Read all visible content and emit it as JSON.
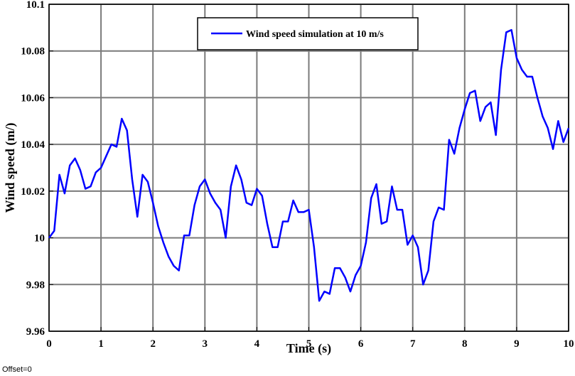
{
  "chart_data": {
    "type": "line",
    "title": "",
    "xlabel": "Time (s)",
    "ylabel": "Wind speed (m/)",
    "xlim": [
      0,
      10
    ],
    "ylim": [
      9.96,
      10.1
    ],
    "xticks": [
      "0",
      "1",
      "2",
      "3",
      "4",
      "5",
      "6",
      "7",
      "8",
      "9",
      "10"
    ],
    "yticks": [
      "9.96",
      "9.98",
      "10",
      "10.02",
      "10.04",
      "10.06",
      "10.08",
      "10.1"
    ],
    "grid": true,
    "legend_position": "top-center",
    "offset_label": "Offset=0",
    "line_color": "#0000ff",
    "series": [
      {
        "name": "Wind speed simulation at 10 m/s",
        "x": [
          0,
          0.1,
          0.2,
          0.3,
          0.4,
          0.5,
          0.6,
          0.7,
          0.8,
          0.9,
          1.0,
          1.1,
          1.2,
          1.3,
          1.4,
          1.5,
          1.6,
          1.7,
          1.8,
          1.9,
          2.0,
          2.1,
          2.2,
          2.3,
          2.4,
          2.5,
          2.6,
          2.7,
          2.8,
          2.9,
          3.0,
          3.1,
          3.2,
          3.3,
          3.4,
          3.5,
          3.6,
          3.7,
          3.8,
          3.9,
          4.0,
          4.1,
          4.2,
          4.3,
          4.4,
          4.5,
          4.6,
          4.7,
          4.8,
          4.9,
          5.0,
          5.1,
          5.2,
          5.3,
          5.4,
          5.5,
          5.6,
          5.7,
          5.8,
          5.9,
          6.0,
          6.1,
          6.2,
          6.3,
          6.4,
          6.5,
          6.6,
          6.7,
          6.8,
          6.9,
          7.0,
          7.1,
          7.2,
          7.3,
          7.4,
          7.5,
          7.6,
          7.7,
          7.8,
          7.9,
          8.0,
          8.1,
          8.2,
          8.3,
          8.4,
          8.5,
          8.6,
          8.7,
          8.8,
          8.9,
          9.0,
          9.1,
          9.2,
          9.3,
          9.4,
          9.5,
          9.6,
          9.7,
          9.8,
          9.9,
          10.0
        ],
        "y": [
          10.0,
          10.003,
          10.027,
          10.019,
          10.031,
          10.034,
          10.029,
          10.021,
          10.022,
          10.028,
          10.03,
          10.035,
          10.04,
          10.039,
          10.051,
          10.046,
          10.025,
          10.009,
          10.027,
          10.024,
          10.015,
          10.005,
          9.998,
          9.992,
          9.988,
          9.986,
          10.001,
          10.001,
          10.014,
          10.022,
          10.025,
          10.019,
          10.015,
          10.012,
          10.0,
          10.022,
          10.031,
          10.025,
          10.015,
          10.014,
          10.021,
          10.018,
          10.006,
          9.996,
          9.996,
          10.007,
          10.007,
          10.016,
          10.011,
          10.011,
          10.012,
          9.996,
          9.973,
          9.977,
          9.976,
          9.987,
          9.987,
          9.983,
          9.977,
          9.984,
          9.988,
          9.998,
          10.017,
          10.023,
          10.006,
          10.007,
          10.022,
          10.012,
          10.012,
          9.997,
          10.001,
          9.996,
          9.98,
          9.986,
          10.007,
          10.013,
          10.012,
          10.042,
          10.036,
          10.047,
          10.055,
          10.062,
          10.063,
          10.05,
          10.056,
          10.058,
          10.044,
          10.072,
          10.088,
          10.089,
          10.077,
          10.072,
          10.069,
          10.069,
          10.06,
          10.052,
          10.047,
          10.038,
          10.05,
          10.041,
          10.047
        ]
      }
    ]
  }
}
